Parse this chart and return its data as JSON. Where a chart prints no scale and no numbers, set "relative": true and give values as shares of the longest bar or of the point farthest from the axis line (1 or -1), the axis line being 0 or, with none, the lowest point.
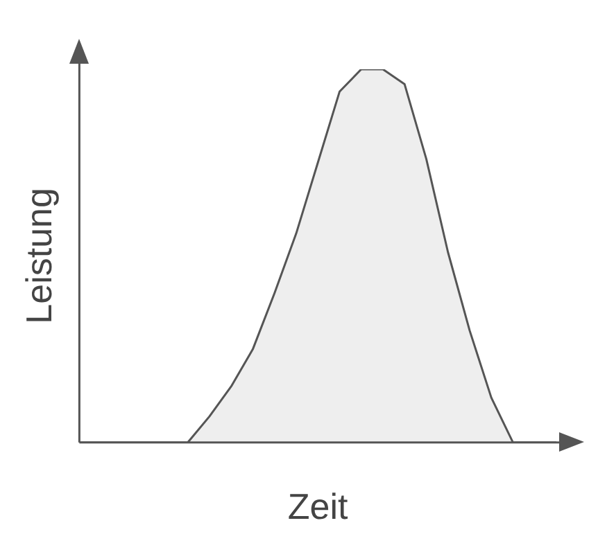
{
  "chart_data": {
    "type": "area",
    "relative": true,
    "xlabel": "Zeit",
    "ylabel": "Leistung",
    "categories": [
      null,
      null,
      null,
      null,
      null,
      null,
      null,
      null,
      null,
      null,
      null,
      null,
      null,
      null,
      null,
      null,
      null,
      null,
      null,
      null,
      null,
      null,
      null
    ],
    "color": "#555555",
    "values": [
      0,
      0,
      0,
      0,
      0,
      0,
      0.07,
      0.15,
      0.25,
      0.4,
      0.56,
      0.75,
      0.94,
      1,
      1,
      0.96,
      0.76,
      0.51,
      0.3,
      0.12,
      0,
      0,
      0
    ]
  }
}
